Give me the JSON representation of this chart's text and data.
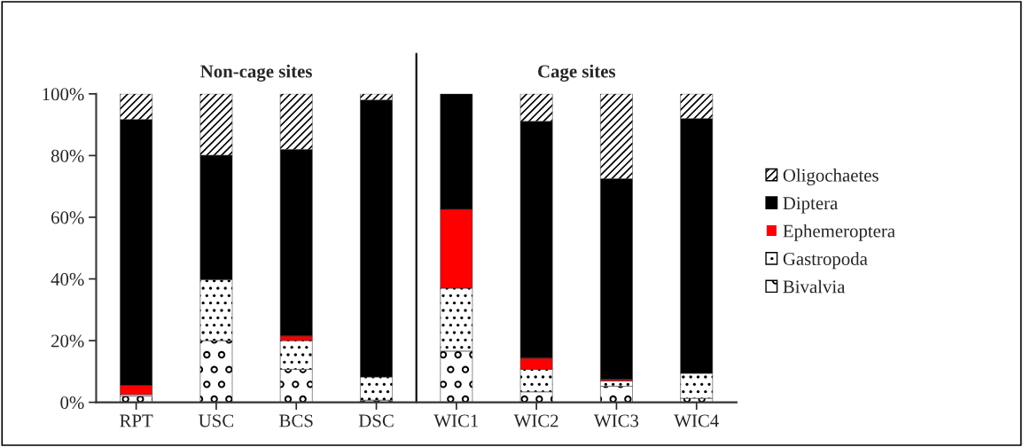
{
  "chart_data": {
    "type": "bar",
    "stacked": true,
    "categories": [
      "RPT",
      "USC",
      "BCS",
      "DSC",
      "WIC1",
      "WIC2",
      "WIC3",
      "WIC4"
    ],
    "series": [
      {
        "name": "Bivalvia",
        "color": "#ffffff",
        "values": [
          2,
          20,
          10.7,
          0.7,
          16.6,
          3.4,
          5.2,
          1.3
        ]
      },
      {
        "name": "Gastropoda",
        "color": "#ffffff",
        "values": [
          0.5,
          19.8,
          9.3,
          7.5,
          20.4,
          7.3,
          1.7,
          8.1
        ]
      },
      {
        "name": "Ephemeroptera",
        "color": "#ff0000",
        "values": [
          3,
          0,
          1.5,
          0,
          25.6,
          3.6,
          0.5,
          0
        ]
      },
      {
        "name": "Diptera",
        "color": "#000000",
        "values": [
          86.2,
          40.3,
          60.5,
          89.8,
          37.4,
          76.8,
          65.1,
          82.6
        ]
      },
      {
        "name": "Oligochaetes",
        "color": "#ffffff",
        "values": [
          8.3,
          19.9,
          18,
          2,
          0,
          8.9,
          27.5,
          8
        ]
      }
    ],
    "ylim": [
      0,
      100
    ],
    "yticks": [
      {
        "value": 0,
        "label": "0%"
      },
      {
        "value": 20,
        "label": "20%"
      },
      {
        "value": 40,
        "label": "40%"
      },
      {
        "value": 60,
        "label": "60%"
      },
      {
        "value": 80,
        "label": "80%"
      },
      {
        "value": 100,
        "label": "100%"
      }
    ],
    "annotations": [
      "Non-cage sites",
      "Cage sites"
    ],
    "legend": "right",
    "grid": false
  }
}
